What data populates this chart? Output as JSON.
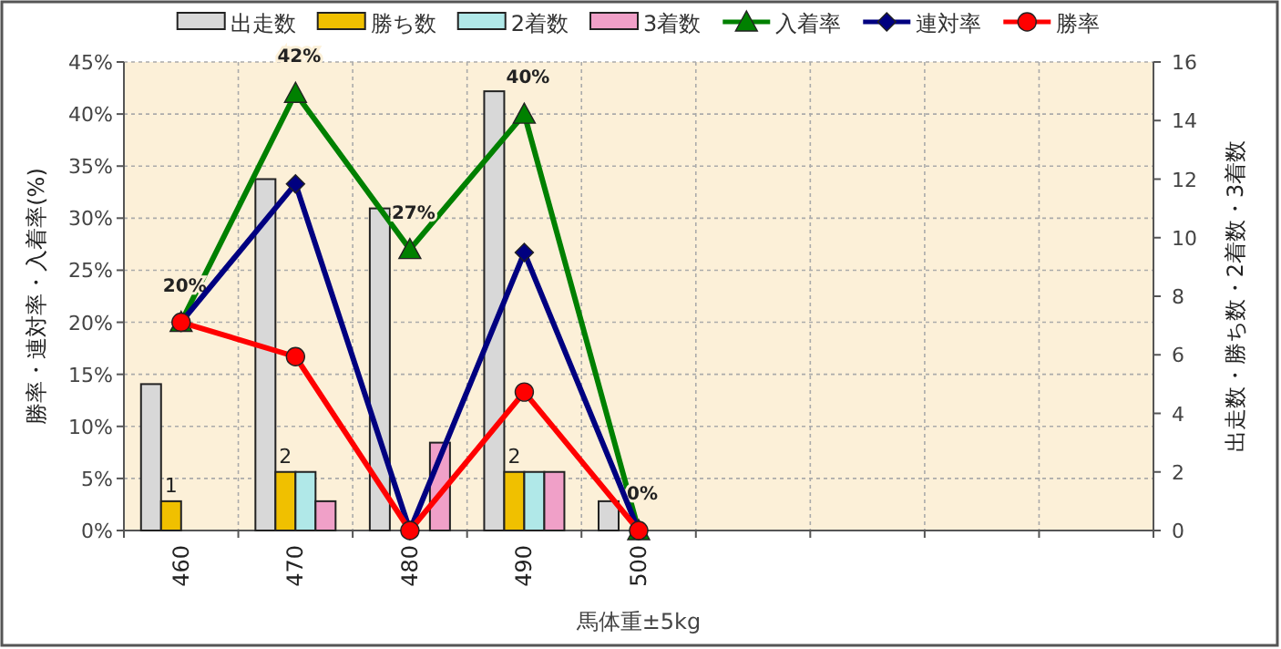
{
  "chart_data": {
    "type": "bar",
    "xlabel": "馬体重±5kg",
    "ylabel": "勝率・連対率・入着率(%)",
    "y2label": "出走数・勝ち数・2着数・3着数",
    "categories": [
      "460",
      "470",
      "480",
      "490",
      "500",
      null,
      null,
      null,
      null
    ],
    "ylim": [
      0,
      45
    ],
    "yticks": [
      {
        "value": 0,
        "label": "0%"
      },
      {
        "value": 5,
        "label": "5%"
      },
      {
        "value": 10,
        "label": "10%"
      },
      {
        "value": 15,
        "label": "15%"
      },
      {
        "value": 20,
        "label": "20%"
      },
      {
        "value": 25,
        "label": "25%"
      },
      {
        "value": 30,
        "label": "30%"
      },
      {
        "value": 35,
        "label": "35%"
      },
      {
        "value": 40,
        "label": "40%"
      },
      {
        "value": 45,
        "label": "45%"
      }
    ],
    "y2lim": [
      0,
      16
    ],
    "y2ticks": [
      0,
      2,
      4,
      6,
      8,
      10,
      12,
      14,
      16
    ],
    "grid": true,
    "legend": "top",
    "series": [
      {
        "name": "出走数",
        "axis": "y2",
        "color": "#d8d8d8",
        "values": [
          5,
          12,
          11,
          15,
          1,
          null,
          null,
          null,
          null
        ]
      },
      {
        "name": "勝ち数",
        "axis": "y2",
        "color": "#f0c000",
        "values": [
          1,
          2,
          0,
          2,
          0,
          null,
          null,
          null,
          null
        ],
        "value_labels": [
          "1",
          "2",
          null,
          "2",
          null,
          null,
          null,
          null,
          null
        ]
      },
      {
        "name": "2着数",
        "axis": "y2",
        "color": "#b0e8e8",
        "values": [
          0,
          2,
          0,
          2,
          0,
          null,
          null,
          null,
          null
        ]
      },
      {
        "name": "3着数",
        "axis": "y2",
        "color": "#f0a0c8",
        "values": [
          0,
          1,
          3,
          2,
          0,
          null,
          null,
          null,
          null
        ]
      },
      {
        "name": "入着率",
        "type": "line",
        "color": "#008000",
        "marker": "triangle",
        "values": [
          20,
          42,
          27,
          40,
          0,
          null,
          null,
          null,
          null
        ],
        "value_labels": [
          "20%",
          "42%",
          "27%",
          "40%",
          "0%",
          null,
          null,
          null,
          null
        ]
      },
      {
        "name": "連対率",
        "type": "line",
        "color": "#000080",
        "marker": "diamond",
        "values": [
          20,
          33.3,
          0,
          26.7,
          0,
          null,
          null,
          null,
          null
        ]
      },
      {
        "name": "勝率",
        "type": "line",
        "color": "#ff0000",
        "marker": "circle",
        "values": [
          20,
          16.7,
          0,
          13.3,
          0,
          null,
          null,
          null,
          null
        ]
      }
    ]
  }
}
